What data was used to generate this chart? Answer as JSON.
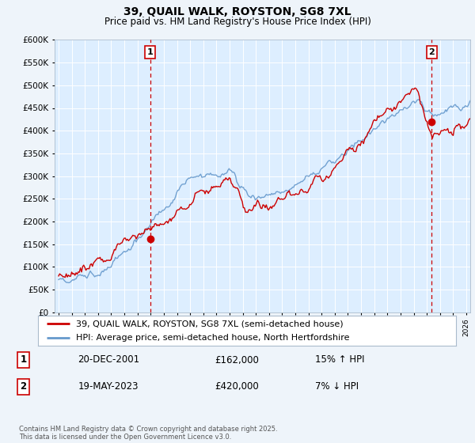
{
  "title": "39, QUAIL WALK, ROYSTON, SG8 7XL",
  "subtitle": "Price paid vs. HM Land Registry's House Price Index (HPI)",
  "red_label": "39, QUAIL WALK, ROYSTON, SG8 7XL (semi-detached house)",
  "blue_label": "HPI: Average price, semi-detached house, North Hertfordshire",
  "annotation1_box": "1",
  "annotation1_date": "20-DEC-2001",
  "annotation1_price": "£162,000",
  "annotation1_hpi": "15% ↑ HPI",
  "annotation2_box": "2",
  "annotation2_date": "19-MAY-2023",
  "annotation2_price": "£420,000",
  "annotation2_hpi": "7% ↓ HPI",
  "footnote": "Contains HM Land Registry data © Crown copyright and database right 2025.\nThis data is licensed under the Open Government Licence v3.0.",
  "ylim": [
    0,
    600000
  ],
  "yticks": [
    0,
    50000,
    100000,
    150000,
    200000,
    250000,
    300000,
    350000,
    400000,
    450000,
    500000,
    550000,
    600000
  ],
  "red_color": "#cc0000",
  "blue_color": "#6699cc",
  "bg_color": "#eef4fa",
  "plot_bg": "#ddeeff",
  "marker1_x": 2001.96,
  "marker1_y": 162000,
  "marker2_x": 2023.38,
  "marker2_y": 420000,
  "xmin": 1994.7,
  "xmax": 2026.3
}
